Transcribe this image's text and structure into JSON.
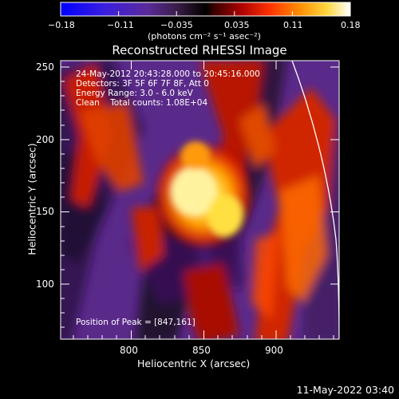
{
  "colorbar": {
    "ticks": [
      "−0.18",
      "−0.11",
      "−0.035",
      "0.035",
      "0.11",
      "0.18"
    ],
    "unit_label": "(photons cm⁻² s⁻¹ asec⁻²)"
  },
  "image": {
    "title": "Reconstructed RHESSI Image",
    "info_lines": [
      "24-May-2012 20:43:28.000 to 20:45:16.000",
      "Detectors: 3F 5F 6F 7F 8F, Att 0",
      "Energy Range: 3.0 - 6.0 keV",
      "Clean    Total counts: 1.08E+04"
    ],
    "peak_text": "Position of Peak = [847,161]"
  },
  "axes": {
    "xlabel": "Heliocentric X (arcsec)",
    "ylabel": "Heliocentric Y (arcsec)",
    "x_ticks": [
      "800",
      "850",
      "900"
    ],
    "y_ticks": [
      "100",
      "150",
      "200",
      "250"
    ]
  },
  "footer": {
    "timestamp": "11-May-2022 03:40"
  },
  "colors": {
    "background": "#000000",
    "colormap_low": "#0000ff",
    "colormap_mid": "#000000",
    "colormap_high": "#ffffff"
  }
}
